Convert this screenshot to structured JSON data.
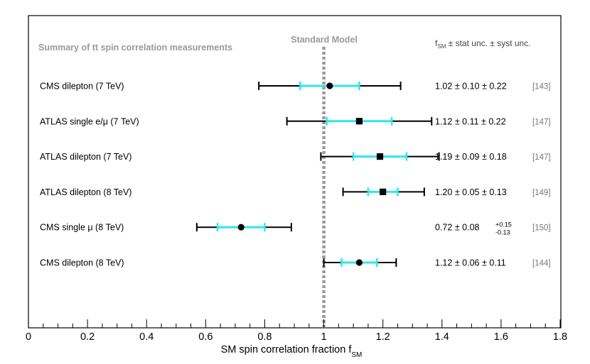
{
  "chart_data": {
    "type": "scatter",
    "title": "Summary of tt spin correlation measurements",
    "sm_label": "Standard Model",
    "sm_value": 1,
    "column_header": {
      "main": "f",
      "sub": "SM",
      "rest": " ± stat unc. ± syst unc."
    },
    "xlabel": {
      "main": "SM spin correlation fraction f",
      "sub": "SM"
    },
    "xlim": [
      0,
      1.8
    ],
    "major_ticks": [
      0,
      0.2,
      0.4,
      0.6,
      0.8,
      1,
      1.2,
      1.4,
      1.6,
      1.8
    ],
    "tick_labels": [
      "0",
      "0.2",
      "0.4",
      "0.6",
      "0.8",
      "1",
      "1.2",
      "1.4",
      "1.6",
      "1.8"
    ],
    "minor_tick_step": 0.05,
    "grid": false,
    "colors": {
      "total_error": "#000000",
      "stat_error": "#2ee6ee",
      "sm_line": "#999999",
      "reference": "#777777",
      "title": "#999999"
    },
    "measurements": [
      {
        "label": "CMS dilepton (7 TeV)",
        "marker": "circle",
        "value": 1.02,
        "stat": [
          0.92,
          1.12
        ],
        "total": [
          0.78,
          1.26
        ],
        "value_text": "1.02",
        "stat_text": "0.10",
        "syst_text": "0.22",
        "syst_up": "",
        "syst_down": "",
        "reference": "[143]"
      },
      {
        "label": "ATLAS single e/μ (7 TeV)",
        "marker": "square",
        "value": 1.12,
        "stat": [
          1.01,
          1.23
        ],
        "total": [
          0.875,
          1.365
        ],
        "value_text": "1.12",
        "stat_text": "0.11",
        "syst_text": "0.22",
        "syst_up": "",
        "syst_down": "",
        "reference": "[147]"
      },
      {
        "label": "ATLAS dilepton (7 TeV)",
        "marker": "square",
        "value": 1.19,
        "stat": [
          1.1,
          1.28
        ],
        "total": [
          0.99,
          1.39
        ],
        "value_text": "1.19",
        "stat_text": "0.09",
        "syst_text": "0.18",
        "syst_up": "",
        "syst_down": "",
        "reference": "[147]"
      },
      {
        "label": "ATLAS dilepton (8 TeV)",
        "marker": "square",
        "value": 1.2,
        "stat": [
          1.15,
          1.25
        ],
        "total": [
          1.065,
          1.34
        ],
        "value_text": "1.20",
        "stat_text": "0.05",
        "syst_text": "0.13",
        "syst_up": "",
        "syst_down": "",
        "reference": "[149]"
      },
      {
        "label": "CMS single μ (8 TeV)",
        "marker": "circle",
        "value": 0.72,
        "stat": [
          0.64,
          0.8
        ],
        "total": [
          0.57,
          0.89
        ],
        "value_text": "0.72",
        "stat_text": "0.08",
        "syst_text": "",
        "syst_up": "+0.15",
        "syst_down": "-0.13",
        "reference": "[150]"
      },
      {
        "label": "CMS dilepton (8 TeV)",
        "marker": "circle",
        "value": 1.12,
        "stat": [
          1.06,
          1.18
        ],
        "total": [
          1.0,
          1.245
        ],
        "value_text": "1.12",
        "stat_text": "0.06",
        "syst_text": "0.11",
        "syst_up": "",
        "syst_down": "",
        "reference": "[144]"
      }
    ]
  }
}
